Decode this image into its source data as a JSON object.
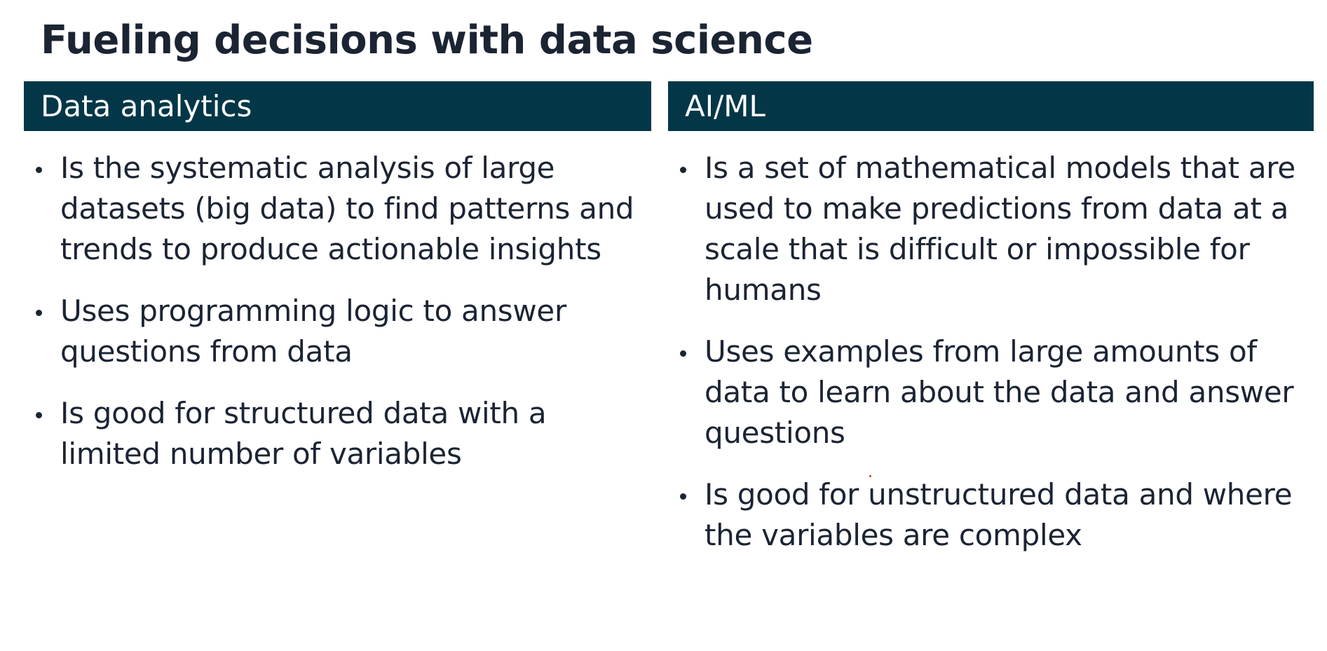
{
  "title": "Fueling decisions with data science",
  "columns": [
    {
      "header": "Data analytics",
      "bullets": [
        "Is the systematic analysis of large datasets (big data) to find patterns and trends to produce actionable insights",
        "Uses programming logic to answer questions from data",
        "Is good for structured data with a limited number of variables"
      ]
    },
    {
      "header": "AI/ML",
      "bullets": [
        "Is a set of mathematical models that are used to make predictions from data at a scale that is difficult or impossible for humans",
        "Uses examples from large amounts of data to learn about the data and answer questions",
        "Is good for unstructured data and where the variables are complex"
      ]
    }
  ],
  "colors": {
    "header_bg": "#033747",
    "header_text": "#ffffff",
    "body_text": "#1b2433"
  }
}
